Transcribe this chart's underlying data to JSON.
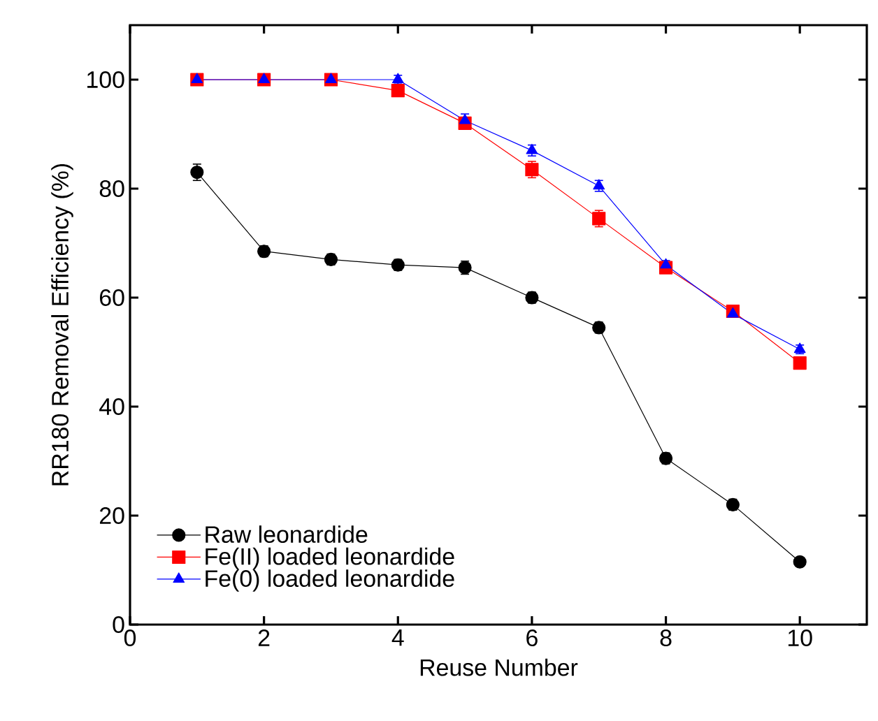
{
  "chart_data": {
    "type": "line",
    "xlabel": "Reuse Number",
    "ylabel": "RR180 Removal Efficiency (%)",
    "x": [
      1,
      2,
      3,
      4,
      5,
      6,
      7,
      8,
      9,
      10
    ],
    "series": [
      {
        "name": "Raw leonardide",
        "color": "#000000",
        "marker": "circle",
        "values": [
          83,
          68.5,
          67,
          66,
          65.5,
          60,
          54.5,
          30.5,
          22,
          11.5
        ],
        "errors": [
          1.5,
          1,
          1,
          1,
          1.2,
          1,
          1,
          1,
          1,
          0.8
        ]
      },
      {
        "name": "Fe(II) loaded leonardide",
        "color": "#ff0000",
        "marker": "square",
        "values": [
          100,
          100,
          100,
          98,
          92,
          83.5,
          74.5,
          65.5,
          57.5,
          48
        ],
        "errors": [
          0.8,
          0.8,
          0.8,
          0.8,
          1,
          1.5,
          1.5,
          0.8,
          1,
          0.8
        ]
      },
      {
        "name": "Fe(0) loaded leonardide",
        "color": "#0000ff",
        "marker": "triangle",
        "values": [
          100,
          100,
          100,
          100,
          92.5,
          87,
          80.5,
          66,
          57,
          50.5
        ],
        "errors": [
          0.8,
          0.8,
          0.8,
          0.8,
          1.2,
          1,
          1,
          0.8,
          null,
          0.8
        ]
      }
    ],
    "xlim": [
      0,
      11
    ],
    "ylim": [
      0,
      110
    ],
    "xticks": [
      0,
      2,
      4,
      6,
      8,
      10
    ],
    "yticks": [
      0,
      20,
      40,
      60,
      80,
      100
    ],
    "grid": false,
    "legend": "bottom left",
    "line_style": "solid"
  }
}
